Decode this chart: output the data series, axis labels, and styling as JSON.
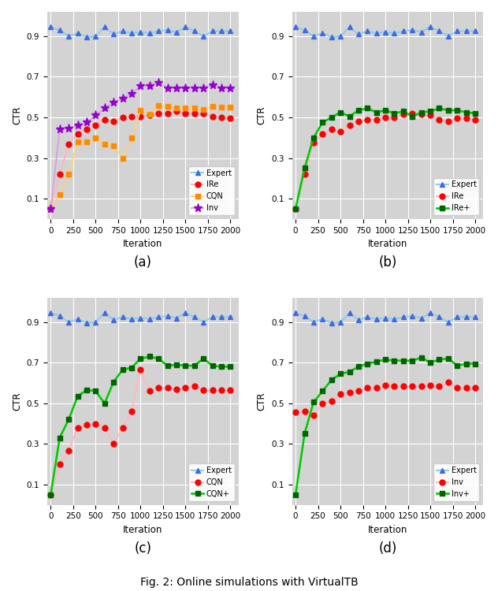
{
  "iterations": [
    0,
    100,
    200,
    300,
    400,
    500,
    600,
    700,
    800,
    900,
    1000,
    1100,
    1200,
    1300,
    1400,
    1500,
    1600,
    1700,
    1800,
    1900,
    2000
  ],
  "expert": [
    0.945,
    0.93,
    0.9,
    0.915,
    0.895,
    0.9,
    0.945,
    0.91,
    0.925,
    0.915,
    0.92,
    0.915,
    0.925,
    0.93,
    0.92,
    0.945,
    0.925,
    0.9,
    0.925,
    0.925,
    0.925
  ],
  "ire_a": [
    0.05,
    0.22,
    0.37,
    0.42,
    0.44,
    0.46,
    0.49,
    0.48,
    0.5,
    0.505,
    0.505,
    0.51,
    0.52,
    0.52,
    0.53,
    0.52,
    0.52,
    0.52,
    0.505,
    0.5,
    0.495
  ],
  "cqn_a": [
    0.05,
    0.12,
    0.22,
    0.38,
    0.38,
    0.4,
    0.37,
    0.36,
    0.3,
    0.4,
    0.535,
    0.515,
    0.56,
    0.555,
    0.545,
    0.545,
    0.545,
    0.54,
    0.555,
    0.55,
    0.55
  ],
  "inv_a": [
    0.05,
    0.44,
    0.445,
    0.46,
    0.475,
    0.51,
    0.545,
    0.575,
    0.595,
    0.615,
    0.655,
    0.655,
    0.67,
    0.645,
    0.645,
    0.645,
    0.645,
    0.645,
    0.66,
    0.645,
    0.645
  ],
  "ire_b": [
    0.05,
    0.22,
    0.375,
    0.42,
    0.44,
    0.43,
    0.46,
    0.48,
    0.49,
    0.49,
    0.5,
    0.5,
    0.515,
    0.52,
    0.515,
    0.51,
    0.49,
    0.48,
    0.495,
    0.495,
    0.49
  ],
  "ireplus_b": [
    0.05,
    0.25,
    0.4,
    0.475,
    0.5,
    0.525,
    0.505,
    0.535,
    0.545,
    0.525,
    0.535,
    0.52,
    0.53,
    0.505,
    0.525,
    0.53,
    0.545,
    0.535,
    0.535,
    0.525,
    0.52
  ],
  "cqn_c": [
    0.05,
    0.2,
    0.265,
    0.38,
    0.395,
    0.4,
    0.38,
    0.3,
    0.38,
    0.46,
    0.665,
    0.56,
    0.575,
    0.575,
    0.57,
    0.575,
    0.585,
    0.565,
    0.565,
    0.565,
    0.565
  ],
  "cqnplus_c": [
    0.05,
    0.33,
    0.42,
    0.535,
    0.565,
    0.56,
    0.5,
    0.605,
    0.665,
    0.675,
    0.72,
    0.73,
    0.72,
    0.685,
    0.69,
    0.685,
    0.685,
    0.72,
    0.685,
    0.68,
    0.68
  ],
  "inv_d": [
    0.455,
    0.46,
    0.44,
    0.5,
    0.51,
    0.545,
    0.555,
    0.56,
    0.575,
    0.575,
    0.59,
    0.585,
    0.585,
    0.585,
    0.585,
    0.59,
    0.585,
    0.605,
    0.575,
    0.575,
    0.575
  ],
  "invplus_d": [
    0.05,
    0.35,
    0.505,
    0.56,
    0.615,
    0.645,
    0.655,
    0.68,
    0.695,
    0.705,
    0.715,
    0.71,
    0.71,
    0.71,
    0.725,
    0.7,
    0.715,
    0.72,
    0.685,
    0.695,
    0.695
  ],
  "color_expert_line": "#87ceeb",
  "color_expert_marker": "#4169e1",
  "color_ire_line": "#ffb6c1",
  "color_ire_marker": "#ff0000",
  "color_cqn_line": "#ffd080",
  "color_cqn_marker": "#ff8c00",
  "color_inv_line": "#dda0dd",
  "color_inv_marker": "#9400d3",
  "color_green_line": "#00cc00",
  "color_green_marker": "#006400",
  "yticks": [
    0.1,
    0.3,
    0.5,
    0.7,
    0.9
  ],
  "xticks": [
    0,
    250,
    500,
    750,
    1000,
    1250,
    1500,
    1750,
    2000
  ],
  "bg_color": "#d3d3d3",
  "fig_caption": "Fig. 2: Online simulations with VirtualTB"
}
